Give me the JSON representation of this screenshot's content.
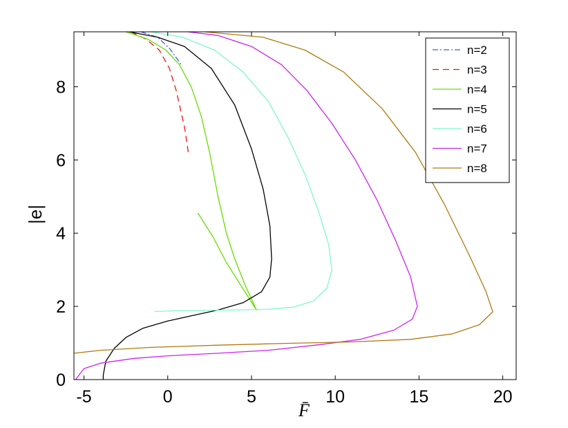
{
  "chart_data": {
    "type": "line",
    "xlabel": "F̄",
    "ylabel": "|e|",
    "xlim": [
      -5.6,
      20.8
    ],
    "ylim": [
      0,
      9.5
    ],
    "xticks": [
      -5,
      0,
      5,
      10,
      15,
      20
    ],
    "yticks": [
      0,
      2,
      4,
      6,
      8
    ],
    "grid": false,
    "legend_position": "top-right",
    "series": [
      {
        "name": "n=2",
        "color": "#3f5fdf",
        "dash": "8 3 2 3",
        "points": [
          [
            -1.6,
            9.5
          ],
          [
            -0.6,
            9.35
          ],
          [
            0.1,
            9.05
          ],
          [
            0.5,
            8.8
          ],
          [
            0.8,
            8.6
          ]
        ]
      },
      {
        "name": "n=3",
        "color": "#ee1111",
        "dash": "9 6",
        "points": [
          [
            -2.2,
            9.5
          ],
          [
            -1.3,
            9.3
          ],
          [
            -0.5,
            9.0
          ],
          [
            0.1,
            8.5
          ],
          [
            0.5,
            7.9
          ],
          [
            0.8,
            7.3
          ],
          [
            1.0,
            6.9
          ],
          [
            1.1,
            6.6
          ],
          [
            1.2,
            6.3
          ],
          [
            1.25,
            6.1
          ]
        ]
      },
      {
        "name": "n=4",
        "color": "#66dd00",
        "dash": "",
        "points": [
          [
            -2.5,
            9.5
          ],
          [
            -1.2,
            9.3
          ],
          [
            -0.1,
            9.0
          ],
          [
            0.7,
            8.6
          ],
          [
            1.4,
            8.0
          ],
          [
            2.0,
            7.2
          ],
          [
            2.5,
            6.2
          ],
          [
            3.0,
            5.0
          ],
          [
            3.5,
            4.0
          ],
          [
            4.0,
            3.3
          ],
          [
            4.6,
            2.6
          ],
          [
            5.0,
            2.2
          ],
          [
            5.3,
            1.9
          ],
          [
            4.4,
            2.55
          ],
          [
            3.5,
            3.2
          ],
          [
            2.7,
            3.9
          ],
          [
            1.8,
            4.55
          ]
        ]
      },
      {
        "name": "n=5",
        "color": "#000000",
        "dash": "",
        "points": [
          [
            -3.85,
            0
          ],
          [
            -3.85,
            0.12
          ],
          [
            -3.7,
            0.5
          ],
          [
            -3.2,
            0.85
          ],
          [
            -2.5,
            1.15
          ],
          [
            -1.5,
            1.4
          ],
          [
            0.0,
            1.6
          ],
          [
            1.5,
            1.75
          ],
          [
            3.0,
            1.9
          ],
          [
            4.5,
            2.1
          ],
          [
            5.6,
            2.4
          ],
          [
            6.1,
            2.8
          ],
          [
            6.2,
            3.3
          ],
          [
            6.1,
            4.2
          ],
          [
            5.7,
            5.2
          ],
          [
            5.0,
            6.3
          ],
          [
            4.0,
            7.5
          ],
          [
            2.6,
            8.5
          ],
          [
            1.0,
            9.1
          ],
          [
            -0.6,
            9.35
          ],
          [
            -2.3,
            9.5
          ]
        ]
      },
      {
        "name": "n=6",
        "color": "#7ff7d2",
        "dash": "",
        "points": [
          [
            -0.8,
            1.86
          ],
          [
            0.5,
            1.88
          ],
          [
            2.0,
            1.89
          ],
          [
            4.0,
            1.9
          ],
          [
            6.0,
            1.92
          ],
          [
            7.5,
            1.98
          ],
          [
            8.7,
            2.15
          ],
          [
            9.5,
            2.5
          ],
          [
            9.8,
            3.0
          ],
          [
            9.6,
            3.7
          ],
          [
            9.0,
            4.6
          ],
          [
            8.2,
            5.6
          ],
          [
            7.2,
            6.6
          ],
          [
            6.0,
            7.6
          ],
          [
            4.5,
            8.4
          ],
          [
            2.8,
            9.0
          ],
          [
            0.9,
            9.35
          ],
          [
            -1.0,
            9.5
          ]
        ]
      },
      {
        "name": "n=7",
        "color": "#cc22ee",
        "dash": "",
        "points": [
          [
            -5.5,
            0
          ],
          [
            -5.0,
            0.3
          ],
          [
            -4.0,
            0.45
          ],
          [
            -2.0,
            0.58
          ],
          [
            0.0,
            0.65
          ],
          [
            3.0,
            0.72
          ],
          [
            6.0,
            0.8
          ],
          [
            9.0,
            0.95
          ],
          [
            11.5,
            1.1
          ],
          [
            13.5,
            1.35
          ],
          [
            14.6,
            1.65
          ],
          [
            14.9,
            2.0
          ],
          [
            14.5,
            2.8
          ],
          [
            13.6,
            3.8
          ],
          [
            12.5,
            4.9
          ],
          [
            11.2,
            6.0
          ],
          [
            9.8,
            7.0
          ],
          [
            8.3,
            7.9
          ],
          [
            6.8,
            8.6
          ],
          [
            5.0,
            9.1
          ],
          [
            3.0,
            9.4
          ],
          [
            1.2,
            9.5
          ]
        ]
      },
      {
        "name": "n=8",
        "color": "#b07a10",
        "dash": "",
        "points": [
          [
            -5.6,
            0.72
          ],
          [
            -4.0,
            0.8
          ],
          [
            -1.0,
            0.88
          ],
          [
            3.0,
            0.94
          ],
          [
            7.0,
            0.99
          ],
          [
            11.0,
            1.03
          ],
          [
            14.5,
            1.1
          ],
          [
            17.0,
            1.25
          ],
          [
            18.6,
            1.5
          ],
          [
            19.4,
            1.85
          ],
          [
            19.0,
            2.4
          ],
          [
            18.0,
            3.4
          ],
          [
            16.5,
            4.8
          ],
          [
            14.8,
            6.2
          ],
          [
            12.8,
            7.4
          ],
          [
            10.5,
            8.4
          ],
          [
            8.2,
            9.0
          ],
          [
            5.7,
            9.35
          ],
          [
            2.2,
            9.5
          ]
        ]
      }
    ]
  }
}
